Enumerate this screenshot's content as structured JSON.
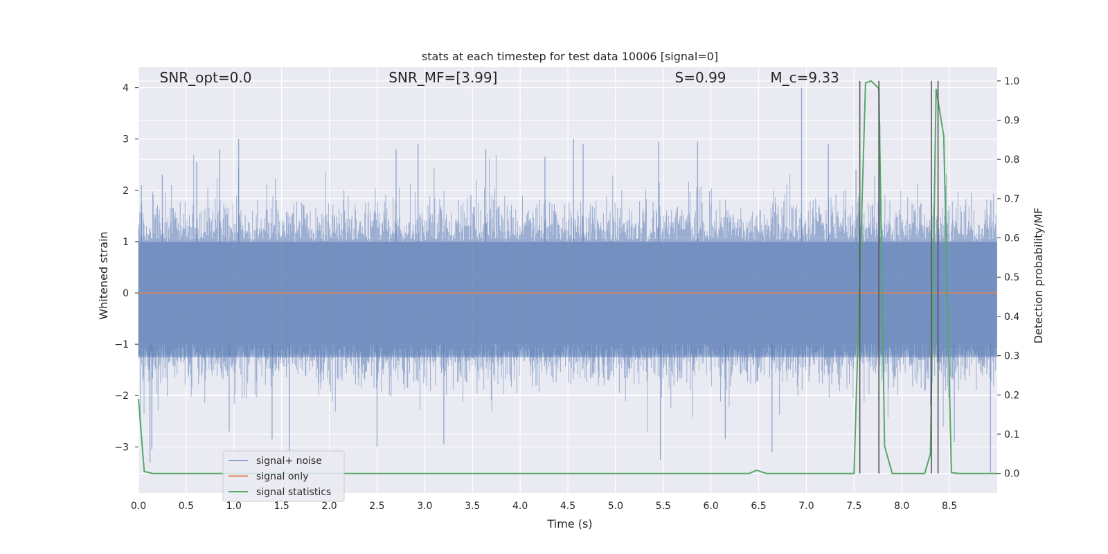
{
  "chart_data": {
    "type": "line",
    "title": "stats at each timestep for test data 10006 [signal=0]",
    "xlabel": "Time (s)",
    "ylabel": "Whitened strain",
    "y2label": "Detection probability/MF",
    "xlim": [
      0,
      9
    ],
    "ylim": [
      -3.9,
      4.4
    ],
    "y2lim": [
      -0.05,
      1.035
    ],
    "xticks": [
      "0.0",
      "0.5",
      "1.0",
      "1.5",
      "2.0",
      "2.5",
      "3.0",
      "3.5",
      "4.0",
      "4.5",
      "5.0",
      "5.5",
      "6.0",
      "6.5",
      "7.0",
      "7.5",
      "8.0",
      "8.5"
    ],
    "yticks": [
      "4",
      "3",
      "2",
      "1",
      "0",
      "−1",
      "−2",
      "−3"
    ],
    "y2ticks": [
      "1.0",
      "0.9",
      "0.8",
      "0.7",
      "0.6",
      "0.5",
      "0.4",
      "0.3",
      "0.2",
      "0.1",
      "0.0"
    ],
    "grid": true,
    "legend_position": "lower-left",
    "annotations": [
      {
        "text": "SNR_opt=0.0",
        "x": 0.2,
        "y": 4.1
      },
      {
        "text": "SNR_MF=[3.99]",
        "x": 2.6,
        "y": 4.1
      },
      {
        "text": "S=0.99",
        "x": 5.6,
        "y": 4.1
      },
      {
        "text": "M_c=9.33",
        "x": 6.6,
        "y": 4.1
      }
    ],
    "series": [
      {
        "name": "signal+ noise",
        "color": "#4c72b0",
        "note": "dense whitened noise, amplitude ~±1.5 with spikes; peaks near ±3-4",
        "sample_spikes": [
          [
            0.03,
            2.1
          ],
          [
            0.12,
            -3.3
          ],
          [
            0.14,
            -3.05
          ],
          [
            0.25,
            2.3
          ],
          [
            0.61,
            2.55
          ],
          [
            0.85,
            2.8
          ],
          [
            1.05,
            3.0
          ],
          [
            0.95,
            -2.7
          ],
          [
            1.4,
            -2.85
          ],
          [
            1.58,
            -3.3
          ],
          [
            2.5,
            -3.0
          ],
          [
            2.7,
            2.8
          ],
          [
            2.93,
            2.9
          ],
          [
            3.2,
            -2.95
          ],
          [
            3.64,
            2.8
          ],
          [
            4.26,
            2.65
          ],
          [
            4.56,
            3.0
          ],
          [
            4.66,
            2.9
          ],
          [
            5.45,
            2.95
          ],
          [
            5.47,
            -3.25
          ],
          [
            5.86,
            2.95
          ],
          [
            6.15,
            -2.85
          ],
          [
            6.64,
            -3.1
          ],
          [
            6.95,
            4.0
          ],
          [
            7.23,
            2.9
          ],
          [
            7.52,
            2.4
          ],
          [
            7.77,
            3.3
          ],
          [
            8.55,
            -2.9
          ],
          [
            8.93,
            -3.5
          ]
        ]
      },
      {
        "name": "signal only",
        "color": "#dd8452",
        "x": [
          0,
          9
        ],
        "y": [
          0,
          0
        ]
      },
      {
        "name": "signal statistics",
        "color": "#55a868",
        "axis": "right",
        "x": [
          0.0,
          0.06,
          0.15,
          0.3,
          6.4,
          6.48,
          6.58,
          7.0,
          7.5,
          7.56,
          7.62,
          7.68,
          7.76,
          7.82,
          7.9,
          8.0,
          8.24,
          8.3,
          8.36,
          8.44,
          8.52,
          8.6,
          9.0
        ],
        "y": [
          0.19,
          0.005,
          0.0,
          0.0,
          0.0,
          0.008,
          0.0,
          0.0,
          0.0,
          0.5,
          0.995,
          1.0,
          0.98,
          0.07,
          0.0,
          0.0,
          0.0,
          0.05,
          0.98,
          0.86,
          0.002,
          0.0,
          0.0
        ]
      }
    ],
    "vlines": [
      7.56,
      7.76,
      8.31,
      8.38
    ],
    "vline_range": [
      0,
      1
    ]
  }
}
